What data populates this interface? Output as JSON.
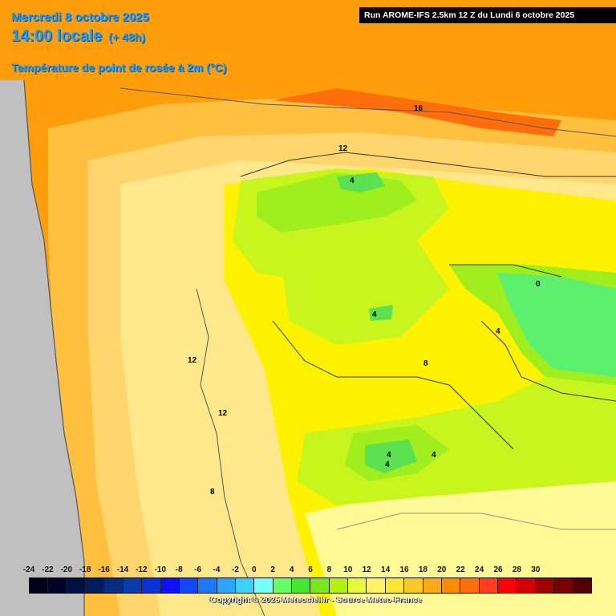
{
  "header": {
    "date": "Mercredi 8 octobre 2025",
    "time": "14:00 locale",
    "lead": "(+ 48h)",
    "parameter": "Température de point de rosée à 2m (°C)",
    "run": "Run AROME-IFS 2.5km 12 Z du Lundi 6 octobre 2025"
  },
  "legend": {
    "ticks": [
      "-24",
      "-22",
      "-20",
      "-18",
      "-16",
      "-14",
      "-12",
      "-10",
      "-8",
      "-6",
      "-4",
      "-2",
      "0",
      "2",
      "4",
      "6",
      "8",
      "10",
      "12",
      "14",
      "16",
      "18",
      "20",
      "22",
      "24",
      "26",
      "28",
      "30"
    ],
    "colors": [
      "#00001a",
      "#000428",
      "#001040",
      "#001c5c",
      "#062c82",
      "#0a3cac",
      "#0a30d8",
      "#1010ff",
      "#1446ff",
      "#1e78ff",
      "#2aa6ff",
      "#3ed0ff",
      "#7affff",
      "#66ff66",
      "#44e632",
      "#7ae61e",
      "#b4f014",
      "#e6fa3c",
      "#fff266",
      "#ffe632",
      "#fac828",
      "#ffaa14",
      "#ff8c00",
      "#ff6e0a",
      "#ff3c1e",
      "#ff0000",
      "#d20000",
      "#a00000",
      "#780000",
      "#500000"
    ],
    "copyright": "Copyright © 2025 Meteociel.fr - Source Meteo-France"
  },
  "map": {
    "contour_labels": [
      "16",
      "12",
      "4",
      "4",
      "0",
      "4",
      "8",
      "12",
      "12",
      "4",
      "4",
      "4",
      "8"
    ],
    "colors": {
      "sea": "#ff9900",
      "warm": "#ffc848",
      "mid": "#ffe68c",
      "yellow": "#fff000",
      "pale": "#fffa96",
      "green": "#a0f01e",
      "lime": "#60e060"
    }
  }
}
